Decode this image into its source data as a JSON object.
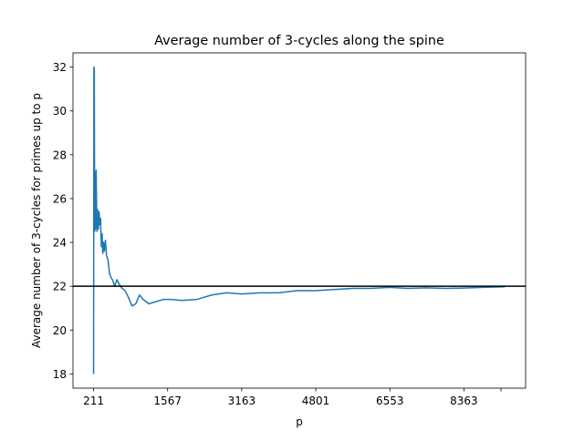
{
  "chart_data": {
    "type": "line",
    "title": "Average number of 3-cycles along the spine",
    "xlabel": "p",
    "ylabel": "Average number of 3-cycles for primes up to p",
    "x_ticks": [
      "211",
      "1567",
      "3163",
      "4801",
      "6553",
      "8363",
      ""
    ],
    "y_ticks": [
      "18",
      "20",
      "22",
      "24",
      "26",
      "28",
      "30",
      "32"
    ],
    "y_tick_values": [
      18,
      20,
      22,
      24,
      26,
      28,
      30,
      32
    ],
    "ylim": [
      17.35,
      32.65
    ],
    "x_index_range": [
      1,
      1112
    ],
    "x_tick_indices": [
      1,
      201,
      401,
      601,
      801,
      1001,
      1101
    ],
    "reference_line": 22,
    "series": [
      {
        "color": "#1f77b4",
        "x_index": [
          1,
          2,
          3,
          4,
          5,
          6,
          8,
          10,
          12,
          14,
          16,
          18,
          20,
          22,
          24,
          26,
          28,
          30,
          33,
          36,
          40,
          44,
          48,
          52,
          58,
          64,
          70,
          78,
          86,
          95,
          105,
          115,
          125,
          135,
          150,
          170,
          190,
          210,
          240,
          280,
          320,
          360,
          400,
          450,
          500,
          550,
          600,
          650,
          700,
          750,
          800,
          850,
          900,
          950,
          1000,
          1050,
          1100,
          1112
        ],
        "values": [
          18.0,
          32.0,
          31.9,
          24.5,
          27.2,
          24.6,
          27.3,
          24.5,
          25.5,
          24.6,
          25.4,
          24.8,
          25.1,
          23.8,
          24.4,
          23.5,
          24.0,
          23.6,
          24.1,
          23.4,
          23.2,
          22.6,
          22.4,
          22.3,
          22.0,
          22.3,
          22.1,
          21.9,
          21.8,
          21.5,
          21.1,
          21.2,
          21.6,
          21.4,
          21.2,
          21.3,
          21.4,
          21.4,
          21.35,
          21.4,
          21.6,
          21.7,
          21.65,
          21.7,
          21.7,
          21.8,
          21.8,
          21.85,
          21.9,
          21.9,
          21.95,
          21.9,
          21.93,
          21.9,
          21.92,
          21.95,
          21.97,
          21.98
        ]
      }
    ]
  }
}
